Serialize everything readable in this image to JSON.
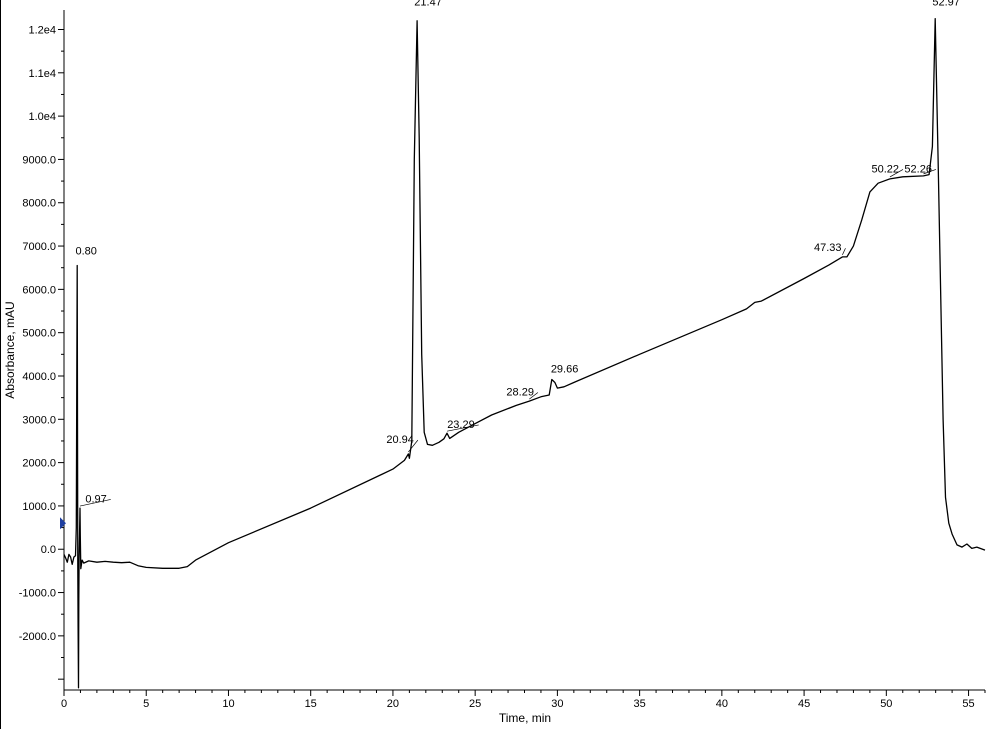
{
  "chart_data": {
    "type": "line",
    "xlabel": "Time, min",
    "ylabel": "Absorbance, mAU",
    "xlim": [
      0,
      56
    ],
    "ylim": [
      -3250,
      12450
    ],
    "x_ticks": [
      {
        "v": 0,
        "label": "0"
      },
      {
        "v": 5,
        "label": "5"
      },
      {
        "v": 10,
        "label": "10"
      },
      {
        "v": 15,
        "label": "15"
      },
      {
        "v": 20,
        "label": "20"
      },
      {
        "v": 25,
        "label": "25"
      },
      {
        "v": 30,
        "label": "30"
      },
      {
        "v": 35,
        "label": "35"
      },
      {
        "v": 40,
        "label": "40"
      },
      {
        "v": 45,
        "label": "45"
      },
      {
        "v": 50,
        "label": "50"
      },
      {
        "v": 55,
        "label": "55"
      }
    ],
    "y_ticks": [
      {
        "v": 12000,
        "label": "1.2e4"
      },
      {
        "v": 11000,
        "label": "1.1e4"
      },
      {
        "v": 10000,
        "label": "1.0e4"
      },
      {
        "v": 9000,
        "label": "9000.0"
      },
      {
        "v": 8000,
        "label": "8000.0"
      },
      {
        "v": 7000,
        "label": "7000.0"
      },
      {
        "v": 6000,
        "label": "6000.0"
      },
      {
        "v": 5000,
        "label": "5000.0"
      },
      {
        "v": 4000,
        "label": "4000.0"
      },
      {
        "v": 3000,
        "label": "3000.0"
      },
      {
        "v": 2000,
        "label": "2000.0"
      },
      {
        "v": 1000,
        "label": "1000.0"
      },
      {
        "v": 0,
        "label": "0.0"
      },
      {
        "v": -1000,
        "label": "-1000.0"
      },
      {
        "v": -2000,
        "label": "-2000.0"
      }
    ],
    "grid": false,
    "series": [
      {
        "points": [
          [
            0.0,
            -120
          ],
          [
            0.1,
            -200
          ],
          [
            0.2,
            -300
          ],
          [
            0.3,
            -120
          ],
          [
            0.4,
            -180
          ],
          [
            0.5,
            -350
          ],
          [
            0.6,
            -180
          ],
          [
            0.7,
            -150
          ],
          [
            0.75,
            500
          ],
          [
            0.78,
            4000
          ],
          [
            0.8,
            6550
          ],
          [
            0.82,
            3000
          ],
          [
            0.84,
            -400
          ],
          [
            0.86,
            -1800
          ],
          [
            0.88,
            -3200
          ],
          [
            0.9,
            -1200
          ],
          [
            0.92,
            -200
          ],
          [
            0.95,
            400
          ],
          [
            0.97,
            950
          ],
          [
            0.99,
            300
          ],
          [
            1.02,
            -450
          ],
          [
            1.1,
            -250
          ],
          [
            1.2,
            -320
          ],
          [
            1.5,
            -270
          ],
          [
            2.0,
            -300
          ],
          [
            2.5,
            -280
          ],
          [
            3.0,
            -300
          ],
          [
            3.5,
            -310
          ],
          [
            4.0,
            -300
          ],
          [
            4.5,
            -380
          ],
          [
            5.0,
            -420
          ],
          [
            6.0,
            -440
          ],
          [
            7.0,
            -440
          ],
          [
            7.5,
            -400
          ],
          [
            8.0,
            -250
          ],
          [
            10.0,
            150
          ],
          [
            15.0,
            950
          ],
          [
            20.0,
            1850
          ],
          [
            20.7,
            2050
          ],
          [
            20.94,
            2200
          ],
          [
            21.0,
            2100
          ],
          [
            21.15,
            2500
          ],
          [
            21.3,
            9000
          ],
          [
            21.47,
            12200
          ],
          [
            21.6,
            9500
          ],
          [
            21.75,
            4500
          ],
          [
            21.9,
            2700
          ],
          [
            22.1,
            2420
          ],
          [
            22.4,
            2400
          ],
          [
            22.8,
            2470
          ],
          [
            23.1,
            2550
          ],
          [
            23.29,
            2680
          ],
          [
            23.45,
            2560
          ],
          [
            24.0,
            2700
          ],
          [
            25.0,
            2900
          ],
          [
            26.0,
            3100
          ],
          [
            27.5,
            3320
          ],
          [
            28.29,
            3420
          ],
          [
            29.0,
            3520
          ],
          [
            29.5,
            3560
          ],
          [
            29.66,
            3920
          ],
          [
            29.85,
            3850
          ],
          [
            30.0,
            3720
          ],
          [
            30.4,
            3750
          ],
          [
            31.0,
            3850
          ],
          [
            35.0,
            4500
          ],
          [
            40.0,
            5300
          ],
          [
            41.5,
            5550
          ],
          [
            42.0,
            5700
          ],
          [
            42.4,
            5730
          ],
          [
            45.0,
            6250
          ],
          [
            46.5,
            6560
          ],
          [
            47.33,
            6750
          ],
          [
            47.6,
            6750
          ],
          [
            48.0,
            7000
          ],
          [
            48.5,
            7600
          ],
          [
            49.0,
            8250
          ],
          [
            49.5,
            8450
          ],
          [
            50.22,
            8550
          ],
          [
            51.0,
            8600
          ],
          [
            52.26,
            8620
          ],
          [
            52.6,
            8650
          ],
          [
            52.8,
            9300
          ],
          [
            52.97,
            12250
          ],
          [
            53.15,
            9000
          ],
          [
            53.3,
            6000
          ],
          [
            53.45,
            3000
          ],
          [
            53.6,
            1200
          ],
          [
            53.8,
            600
          ],
          [
            54.0,
            350
          ],
          [
            54.3,
            100
          ],
          [
            54.6,
            50
          ],
          [
            54.9,
            120
          ],
          [
            55.2,
            20
          ],
          [
            55.5,
            50
          ],
          [
            56.0,
            -20
          ]
        ]
      }
    ],
    "annotations": [
      {
        "x": 0.8,
        "label": "0.80",
        "labelAt": [
          0.7,
          6800
        ],
        "leader": false
      },
      {
        "x": 0.97,
        "label": "0.97",
        "labelAt": [
          1.3,
          1080
        ],
        "leader": true
      },
      {
        "x": 20.94,
        "label": "20.94",
        "labelAt": [
          19.6,
          2450
        ],
        "leader": true
      },
      {
        "x": 21.47,
        "label": "21.47",
        "labelAt": [
          21.3,
          12550
        ],
        "leader": false
      },
      {
        "x": 23.29,
        "label": "23.29",
        "labelAt": [
          23.3,
          2800
        ],
        "leader": true
      },
      {
        "x": 28.29,
        "label": "28.29",
        "labelAt": [
          26.9,
          3550
        ],
        "leader": true
      },
      {
        "x": 29.66,
        "label": "29.66",
        "labelAt": [
          29.6,
          4080
        ],
        "leader": false
      },
      {
        "x": 47.33,
        "label": "47.33",
        "labelAt": [
          45.6,
          6880
        ],
        "leader": true
      },
      {
        "x": 50.22,
        "label": "50.22",
        "labelAt": [
          49.1,
          8700
        ],
        "leader": true
      },
      {
        "x": 52.26,
        "label": "52.26",
        "labelAt": [
          51.1,
          8700
        ],
        "leader": true
      },
      {
        "x": 52.97,
        "label": "52.97",
        "labelAt": [
          52.8,
          12550
        ],
        "leader": false
      }
    ],
    "marker": {
      "y": 600,
      "color": "#1f3fa0"
    }
  }
}
